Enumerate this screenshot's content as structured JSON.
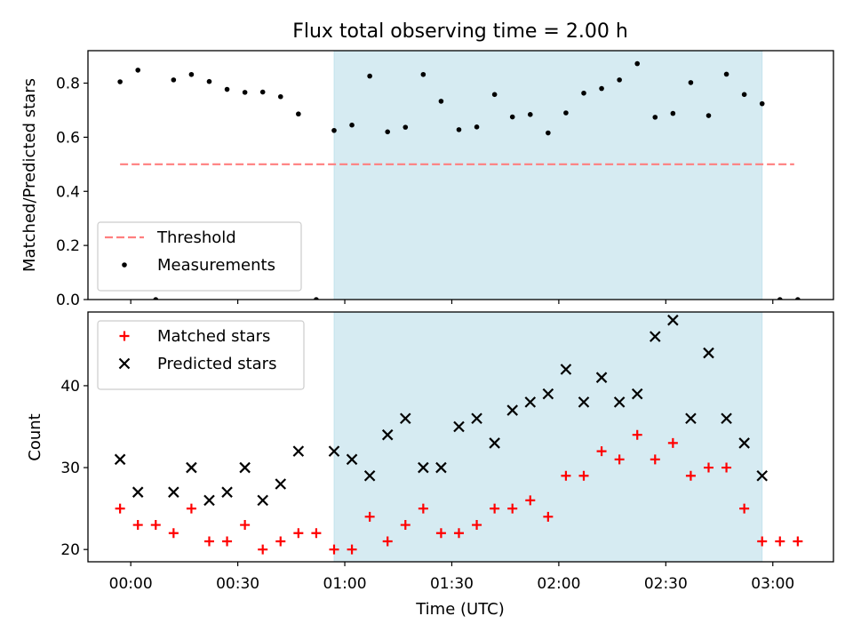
{
  "title": "Flux total observing time = 2.00 h",
  "chart_data": [
    {
      "type": "scatter",
      "panel": "top",
      "ylabel": "Matched/Predicted stars",
      "ylim": [
        0,
        0.92
      ],
      "yticks": [
        0,
        0.2,
        0.4,
        0.6,
        0.8
      ],
      "ytick_labels": [
        "0.0",
        "0.2",
        "0.4",
        "0.6",
        "0.8"
      ],
      "xlim_minutes": [
        -12,
        197
      ],
      "xticks_minutes": [
        0,
        30,
        60,
        90,
        120,
        150,
        180
      ],
      "legend": {
        "placement": "lower-left",
        "entries": [
          "Threshold",
          "Measurements"
        ]
      },
      "shaded_region_minutes": [
        57,
        177
      ],
      "threshold": {
        "name": "Threshold",
        "value": 0.5,
        "x_range_minutes": [
          -3,
          186
        ],
        "color": "#ff7f7f"
      },
      "series": [
        {
          "name": "Measurements",
          "color": "#000000",
          "x_minutes": [
            -3,
            2,
            7,
            12,
            17,
            22,
            27,
            32,
            37,
            42,
            47,
            52,
            57,
            62,
            67,
            72,
            77,
            82,
            87,
            92,
            97,
            102,
            107,
            112,
            117,
            122,
            127,
            132,
            137,
            142,
            147,
            152,
            157,
            162,
            167,
            172,
            177,
            182,
            187
          ],
          "y": [
            0.805,
            0.848,
            0.0,
            0.812,
            0.832,
            0.806,
            0.777,
            0.766,
            0.767,
            0.75,
            0.686,
            0.0,
            0.625,
            0.645,
            0.826,
            0.62,
            0.637,
            0.832,
            0.733,
            0.628,
            0.638,
            0.758,
            0.675,
            0.684,
            0.616,
            0.69,
            0.763,
            0.78,
            0.812,
            0.872,
            0.674,
            0.688,
            0.802,
            0.68,
            0.833,
            0.758,
            0.724,
            0.0,
            0.0
          ]
        }
      ]
    },
    {
      "type": "scatter",
      "panel": "bottom",
      "xlabel": "Time (UTC)",
      "ylabel": "Count",
      "ylim": [
        18.5,
        49
      ],
      "yticks": [
        20,
        30,
        40
      ],
      "ytick_labels": [
        "20",
        "30",
        "40"
      ],
      "xlim_minutes": [
        -12,
        197
      ],
      "xticks_minutes": [
        0,
        30,
        60,
        90,
        120,
        150,
        180
      ],
      "xtick_labels": [
        "00:00",
        "00:30",
        "01:00",
        "01:30",
        "02:00",
        "02:30",
        "03:00"
      ],
      "legend": {
        "placement": "upper-left",
        "entries": [
          "Matched stars",
          "Predicted stars"
        ]
      },
      "shaded_region_minutes": [
        57,
        177
      ],
      "series": [
        {
          "name": "Matched stars",
          "marker": "plus",
          "color": "#ff0000",
          "x_minutes": [
            -3,
            2,
            7,
            12,
            17,
            22,
            27,
            32,
            37,
            42,
            47,
            52,
            57,
            62,
            67,
            72,
            77,
            82,
            87,
            92,
            97,
            102,
            107,
            112,
            117,
            122,
            127,
            132,
            137,
            142,
            147,
            152,
            157,
            162,
            167,
            172,
            177,
            182,
            187
          ],
          "y": [
            25,
            23,
            23,
            22,
            25,
            21,
            21,
            23,
            20,
            21,
            22,
            22,
            20,
            20,
            24,
            21,
            23,
            25,
            22,
            22,
            23,
            25,
            25,
            26,
            24,
            29,
            29,
            32,
            31,
            34,
            31,
            33,
            29,
            30,
            30,
            25,
            21,
            21,
            21
          ]
        },
        {
          "name": "Predicted stars",
          "marker": "x",
          "color": "#000000",
          "x_minutes": [
            -3,
            2,
            12,
            17,
            22,
            27,
            32,
            37,
            42,
            47,
            57,
            62,
            67,
            72,
            77,
            82,
            87,
            92,
            97,
            102,
            107,
            112,
            117,
            122,
            127,
            132,
            137,
            142,
            147,
            152,
            157,
            162,
            167,
            172,
            177
          ],
          "y": [
            31,
            27,
            27,
            30,
            26,
            27,
            30,
            26,
            28,
            32,
            32,
            31,
            29,
            34,
            36,
            30,
            30,
            35,
            36,
            33,
            37,
            38,
            39,
            42,
            38,
            41,
            38,
            39,
            46,
            48,
            36,
            44,
            36,
            33,
            29
          ]
        }
      ]
    }
  ]
}
